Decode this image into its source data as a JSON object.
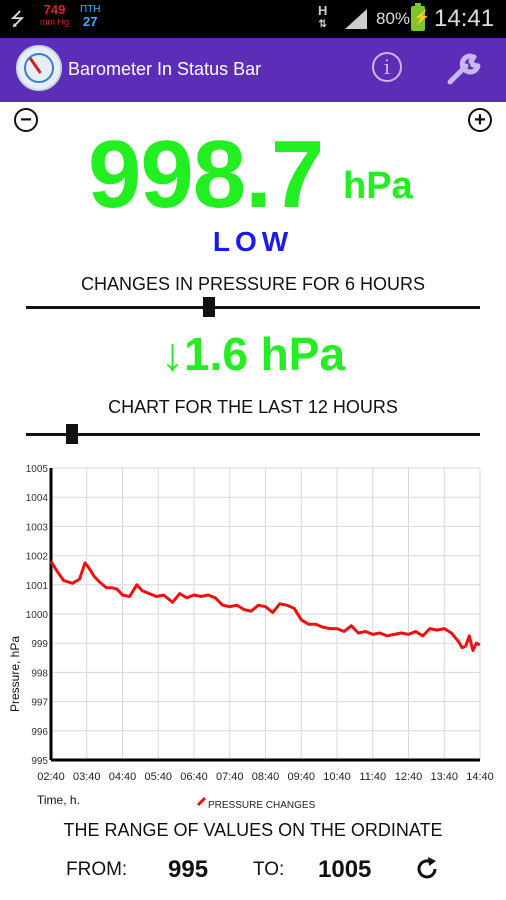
{
  "status_bar": {
    "mmhg_value": "749",
    "mmhg_unit": "mm Hg",
    "pth_label": "ПТН",
    "pth_value": "27",
    "network_label": "H",
    "battery_percent": "80%",
    "time": "14:41",
    "icons": [
      "usb-icon",
      "data-arrows-icon",
      "signal-icon",
      "battery-charging-icon"
    ]
  },
  "app_bar": {
    "title": "Barometer In Status Bar",
    "info_label": "i",
    "icons": [
      "app-logo-icon",
      "info-icon",
      "wrench-icon"
    ]
  },
  "controls": {
    "zoom_out": "−",
    "zoom_in": "+"
  },
  "pressure": {
    "value": "998.7",
    "unit": "hPa",
    "status": "LOW",
    "change_caption": "CHANGES IN PRESSURE FOR 6 HOURS",
    "change_arrow": "↓",
    "change_value": "1.6 hPa",
    "change_slider_level": 0.4,
    "chart_caption": "CHART FOR THE LAST 12 HOURS",
    "chart_slider_level": 0.09
  },
  "range": {
    "title": "THE RANGE OF VALUES ON THE ORDINATE",
    "from_label": "FROM:",
    "from_value": "995",
    "to_label": "TO:",
    "to_value": "1005",
    "refresh_icon": "refresh-icon"
  },
  "colors": {
    "app_bar": "#5c2eb8",
    "pressure_text": "#22ee22",
    "status_text": "#1a1aee",
    "series": "#ee1111"
  },
  "chart_data": {
    "type": "line",
    "xlabel": "Time, h.",
    "ylabel": "Pressure, hPa",
    "x_ticks": [
      "02:40",
      "03:40",
      "04:40",
      "05:40",
      "06:40",
      "07:40",
      "08:40",
      "09:40",
      "10:40",
      "11:40",
      "12:40",
      "13:40",
      "14:40"
    ],
    "y_ticks": [
      995,
      996,
      997,
      998,
      999,
      1000,
      1001,
      1002,
      1003,
      1004,
      1005
    ],
    "ylim": [
      995,
      1005
    ],
    "xlim": [
      0,
      12
    ],
    "grid": true,
    "legend": "bottom-center",
    "series": [
      {
        "name": "PRESSURE CHANGES",
        "x": [
          0,
          0.15,
          0.35,
          0.6,
          0.8,
          0.95,
          1.05,
          1.2,
          1.35,
          1.55,
          1.7,
          1.85,
          2.0,
          2.2,
          2.4,
          2.55,
          2.75,
          2.95,
          3.15,
          3.4,
          3.6,
          3.8,
          4.0,
          4.2,
          4.4,
          4.6,
          4.8,
          5.0,
          5.2,
          5.4,
          5.6,
          5.8,
          6.0,
          6.2,
          6.4,
          6.6,
          6.8,
          7.0,
          7.2,
          7.4,
          7.6,
          7.8,
          8.0,
          8.2,
          8.4,
          8.6,
          8.8,
          9.0,
          9.2,
          9.4,
          9.6,
          9.8,
          10.0,
          10.2,
          10.4,
          10.6,
          10.8,
          11.0,
          11.2,
          11.4,
          11.5,
          11.6,
          11.7,
          11.8,
          11.9,
          12.0
        ],
        "y": [
          1001.8,
          1001.5,
          1001.15,
          1001.05,
          1001.2,
          1001.75,
          1001.6,
          1001.3,
          1001.1,
          1000.9,
          1000.9,
          1000.85,
          1000.65,
          1000.6,
          1001.0,
          1000.8,
          1000.7,
          1000.6,
          1000.65,
          1000.4,
          1000.7,
          1000.55,
          1000.65,
          1000.6,
          1000.65,
          1000.55,
          1000.3,
          1000.25,
          1000.3,
          1000.15,
          1000.1,
          1000.3,
          1000.25,
          1000.05,
          1000.35,
          1000.3,
          1000.2,
          999.8,
          999.65,
          999.65,
          999.55,
          999.5,
          999.5,
          999.4,
          999.6,
          999.35,
          999.4,
          999.3,
          999.35,
          999.25,
          999.3,
          999.35,
          999.3,
          999.4,
          999.25,
          999.5,
          999.45,
          999.5,
          999.35,
          999.05,
          998.85,
          998.9,
          999.25,
          998.75,
          999.0,
          998.95
        ]
      }
    ]
  }
}
